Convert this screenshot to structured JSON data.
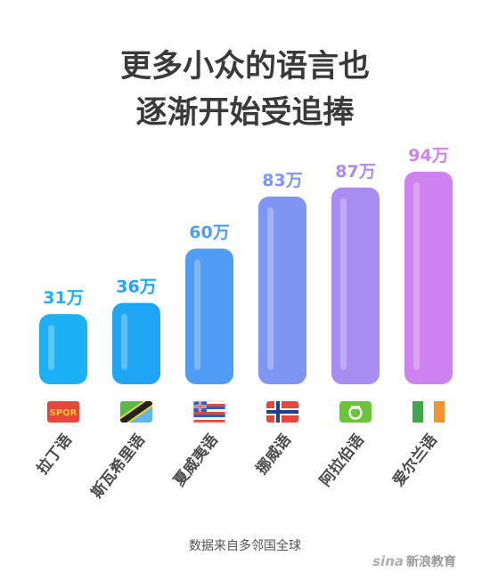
{
  "title_lines": [
    "更多小众的语言也",
    "逐渐开始受追捧"
  ],
  "chart_data": {
    "type": "bar",
    "title": "更多小众的语言也逐渐开始受追捧",
    "categories": [
      "拉丁语",
      "斯瓦希里语",
      "夏威夷语",
      "挪威语",
      "阿拉伯语",
      "爱尔兰语"
    ],
    "values": [
      31,
      36,
      60,
      83,
      87,
      94
    ],
    "value_labels": [
      "31万",
      "36万",
      "60万",
      "83万",
      "87万",
      "94万"
    ],
    "unit": "万",
    "ylim": [
      0,
      100
    ],
    "grid": false,
    "bar_colors": [
      "#1cb0f6",
      "#1ea6f5",
      "#4f9cf5",
      "#7e95f4",
      "#a88cf2",
      "#ce82ef"
    ],
    "label_colors": [
      "#1cb0f6",
      "#1ea6f5",
      "#4f9cf5",
      "#7e95f4",
      "#a88cf2",
      "#ce82ef"
    ]
  },
  "flags": [
    {
      "icon": "spqr-flag-icon",
      "text": "SPQR"
    },
    {
      "icon": "tanzania-flag-icon"
    },
    {
      "icon": "hawaii-flag-icon"
    },
    {
      "icon": "norway-flag-icon"
    },
    {
      "icon": "duolingo-arabic-icon"
    },
    {
      "icon": "ireland-flag-icon"
    }
  ],
  "source": "数据来自多邻国全球",
  "logo": "新浪教育",
  "logo_mark": "sina"
}
